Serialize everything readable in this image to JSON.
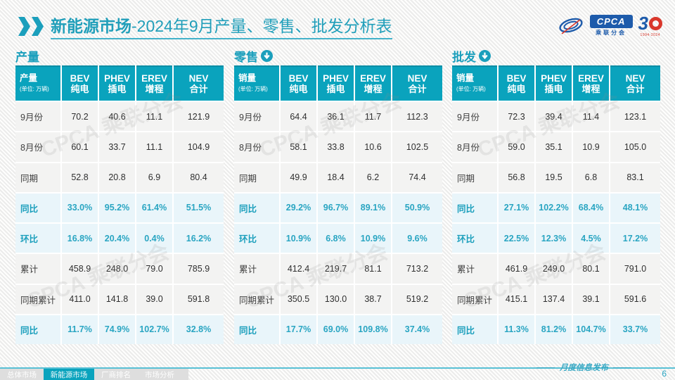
{
  "title": {
    "bold": "新能源市场",
    "rest": "-2024年9月产量、零售、批发分析表"
  },
  "logos": {
    "cpca": "CPCA",
    "cpca_sub": "乘联分会",
    "anniversary": "3",
    "anniversary_years": "1994-2024"
  },
  "watermark": "CPCA 乘联分会",
  "columns": [
    {
      "en": "BEV",
      "zh": "纯电"
    },
    {
      "en": "PHEV",
      "zh": "插电"
    },
    {
      "en": "EREV",
      "zh": "增程"
    },
    {
      "en": "NEV",
      "zh": "合计"
    }
  ],
  "sections": [
    {
      "title": "产量",
      "has_arrow": false,
      "unit": {
        "label": "产量",
        "note": "(单位: 万辆)"
      },
      "rows": [
        {
          "label": "9月份",
          "hl": false,
          "values": [
            "70.2",
            "40.6",
            "11.1",
            "121.9"
          ]
        },
        {
          "label": "8月份",
          "hl": false,
          "values": [
            "60.1",
            "33.7",
            "11.1",
            "104.9"
          ]
        },
        {
          "label": "同期",
          "hl": false,
          "values": [
            "52.8",
            "20.8",
            "6.9",
            "80.4"
          ]
        },
        {
          "label": "同比",
          "hl": true,
          "values": [
            "33.0%",
            "95.2%",
            "61.4%",
            "51.5%"
          ]
        },
        {
          "label": "环比",
          "hl": true,
          "values": [
            "16.8%",
            "20.4%",
            "0.4%",
            "16.2%"
          ]
        },
        {
          "label": "累计",
          "hl": false,
          "values": [
            "458.9",
            "248.0",
            "79.0",
            "785.9"
          ]
        },
        {
          "label": "同期累计",
          "hl": false,
          "values": [
            "411.0",
            "141.8",
            "39.0",
            "591.8"
          ]
        },
        {
          "label": "同比",
          "hl": true,
          "values": [
            "11.7%",
            "74.9%",
            "102.7%",
            "32.8%"
          ]
        }
      ]
    },
    {
      "title": "零售",
      "has_arrow": true,
      "unit": {
        "label": "销量",
        "note": "(单位: 万辆)"
      },
      "rows": [
        {
          "label": "9月份",
          "hl": false,
          "values": [
            "64.4",
            "36.1",
            "11.7",
            "112.3"
          ]
        },
        {
          "label": "8月份",
          "hl": false,
          "values": [
            "58.1",
            "33.8",
            "10.6",
            "102.5"
          ]
        },
        {
          "label": "同期",
          "hl": false,
          "values": [
            "49.9",
            "18.4",
            "6.2",
            "74.4"
          ]
        },
        {
          "label": "同比",
          "hl": true,
          "values": [
            "29.2%",
            "96.7%",
            "89.1%",
            "50.9%"
          ]
        },
        {
          "label": "环比",
          "hl": true,
          "values": [
            "10.9%",
            "6.8%",
            "10.9%",
            "9.6%"
          ]
        },
        {
          "label": "累计",
          "hl": false,
          "values": [
            "412.4",
            "219.7",
            "81.1",
            "713.2"
          ]
        },
        {
          "label": "同期累计",
          "hl": false,
          "values": [
            "350.5",
            "130.0",
            "38.7",
            "519.2"
          ]
        },
        {
          "label": "同比",
          "hl": true,
          "values": [
            "17.7%",
            "69.0%",
            "109.8%",
            "37.4%"
          ]
        }
      ]
    },
    {
      "title": "批发",
      "has_arrow": true,
      "unit": {
        "label": "销量",
        "note": "(单位: 万辆)"
      },
      "rows": [
        {
          "label": "9月份",
          "hl": false,
          "values": [
            "72.3",
            "39.4",
            "11.4",
            "123.1"
          ]
        },
        {
          "label": "8月份",
          "hl": false,
          "values": [
            "59.0",
            "35.1",
            "10.9",
            "105.0"
          ]
        },
        {
          "label": "同期",
          "hl": false,
          "values": [
            "56.8",
            "19.5",
            "6.8",
            "83.1"
          ]
        },
        {
          "label": "同比",
          "hl": true,
          "values": [
            "27.1%",
            "102.2%",
            "68.4%",
            "48.1%"
          ]
        },
        {
          "label": "环比",
          "hl": true,
          "values": [
            "22.5%",
            "12.3%",
            "4.5%",
            "17.2%"
          ]
        },
        {
          "label": "累计",
          "hl": false,
          "values": [
            "461.9",
            "249.0",
            "80.1",
            "791.0"
          ]
        },
        {
          "label": "同期累计",
          "hl": false,
          "values": [
            "415.1",
            "137.4",
            "39.1",
            "591.6"
          ]
        },
        {
          "label": "同比",
          "hl": true,
          "values": [
            "11.3%",
            "81.2%",
            "104.7%",
            "33.7%"
          ]
        }
      ]
    }
  ],
  "footer": {
    "tabs": [
      "总体市场",
      "新能源市场",
      "厂商排名",
      "市场分析"
    ],
    "active_index": 1,
    "note": "月度信息发布",
    "page": "6"
  },
  "colors": {
    "accent_teal": "#0aa3bd",
    "title_teal": "#219fba",
    "highlight_bg": "#e9f5fa",
    "row_bg": "#f3f3f2",
    "cpca_blue": "#1d5bab",
    "anniversary_red": "#d9372b"
  }
}
